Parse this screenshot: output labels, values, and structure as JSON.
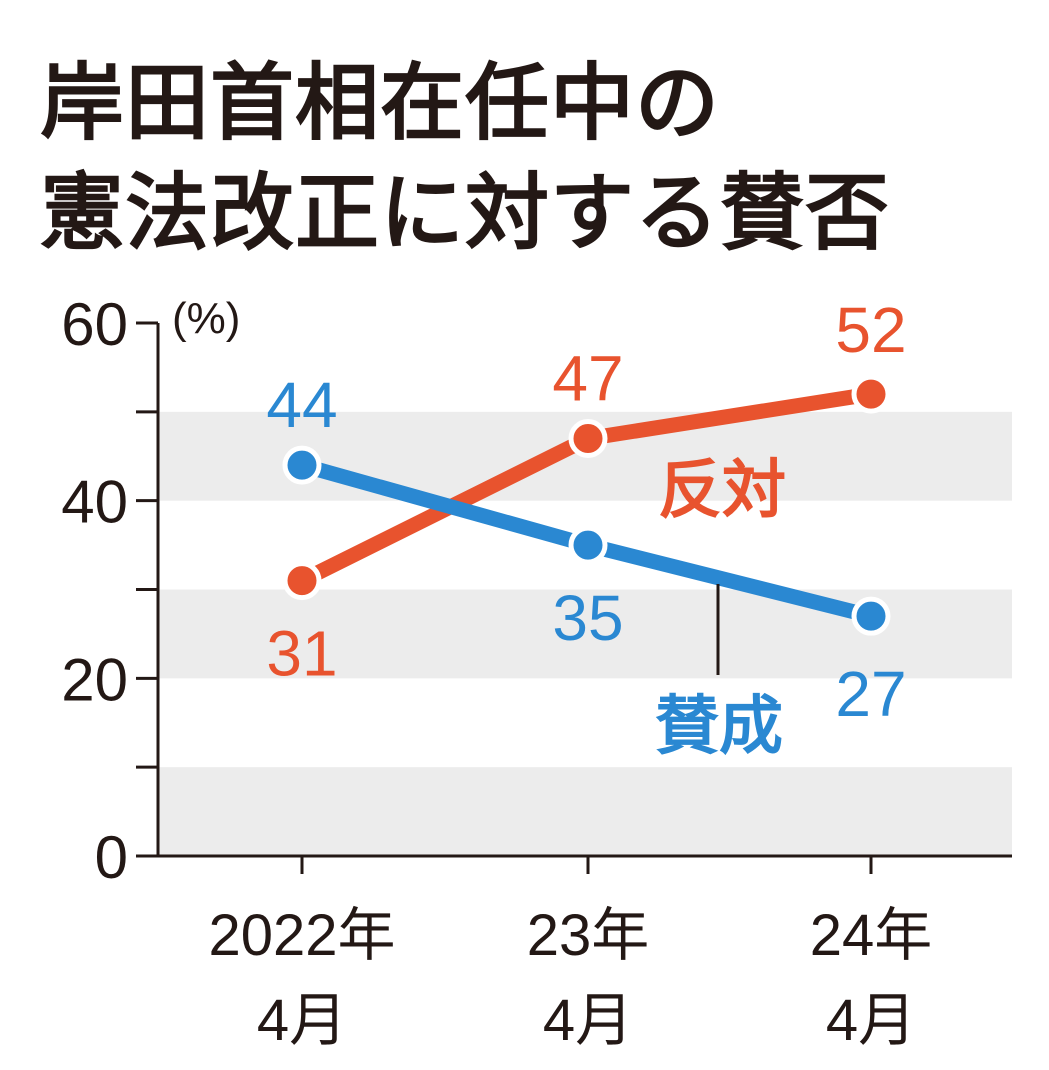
{
  "title_lines": [
    "岸田首相在任中の",
    "憲法改正に対する賛否"
  ],
  "chart_data": {
    "type": "line",
    "title": "岸田首相在任中の憲法改正に対する賛否",
    "categories": [
      [
        "2022年",
        "4月"
      ],
      [
        "23年",
        "4月"
      ],
      [
        "24年",
        "4月"
      ]
    ],
    "ylim": [
      0,
      60
    ],
    "yticks": [
      0,
      20,
      40,
      60
    ],
    "ytick_labels": [
      "0",
      "20",
      "40",
      "60"
    ],
    "ylabel": "(%)",
    "grid": "alternating horizontal bands",
    "series": [
      {
        "name": "反対",
        "color": "#e8532e",
        "values": [
          31,
          47,
          52
        ],
        "value_labels": [
          "31",
          "47",
          "52"
        ]
      },
      {
        "name": "賛成",
        "color": "#2a88d2",
        "values": [
          44,
          35,
          27
        ],
        "value_labels": [
          "44",
          "35",
          "27"
        ]
      }
    ]
  }
}
